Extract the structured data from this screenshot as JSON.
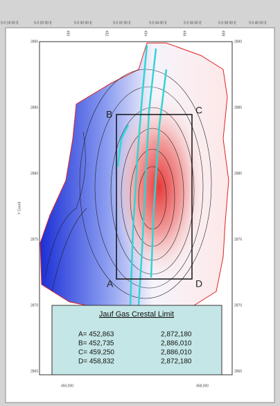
{
  "top_ticks": [
    "5 0 18 00 E",
    "5 0 20 00 E",
    "5 0 30 00 E",
    "5 0 32 00 E",
    "5 0 34 00 E",
    "5 0 36 00 E",
    "5 0 38 00 E",
    "5 0 40 00 E"
  ],
  "inner_top_ticks": [
    "450",
    "452",
    "454",
    "456",
    "458"
  ],
  "left_ticks": [
    "2890",
    "2885",
    "2880",
    "2875",
    "2870",
    "2865"
  ],
  "right_ticks": [
    "2890",
    "2885",
    "2880",
    "2875",
    "2870",
    "2865"
  ],
  "side_label": "Y Coord",
  "bottom_ticks": [
    "450,000",
    "458,000"
  ],
  "corners": {
    "A": "A",
    "B": "B",
    "C": "C",
    "D": "D"
  },
  "legend": {
    "title": "Jauf Gas Crestal Limit",
    "rows": [
      [
        "A= 452,863",
        "2,872,180"
      ],
      [
        "B= 452,735",
        "2,886,010"
      ],
      [
        "C= 459,250",
        "2,886,010"
      ],
      [
        "D= 458,832",
        "2,872,180"
      ]
    ]
  }
}
